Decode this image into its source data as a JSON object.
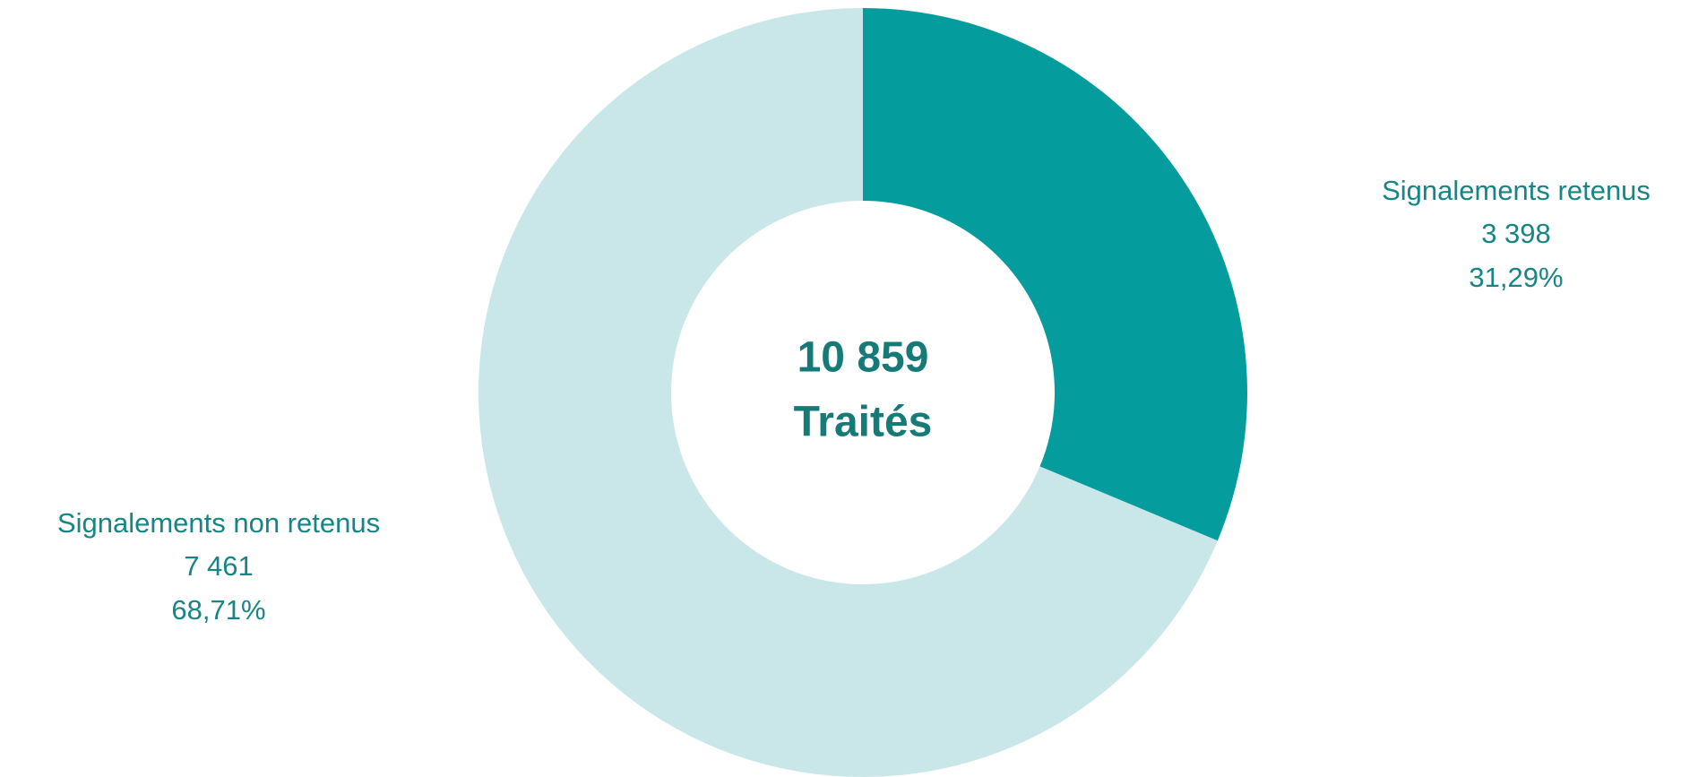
{
  "chart_data": {
    "type": "donut",
    "categories": [
      "Signalements retenus",
      "Signalements non retenus"
    ],
    "values": [
      3398,
      7461
    ],
    "value_labels": [
      "3 398",
      "7 461"
    ],
    "percentages": [
      31.29,
      68.71
    ],
    "percentage_labels": [
      "31,29%",
      "68,71%"
    ],
    "colors": [
      "#059c9e",
      "#c9e7e9"
    ],
    "total": {
      "value": 10859,
      "label": "10 859"
    },
    "center_text": "Traités"
  }
}
